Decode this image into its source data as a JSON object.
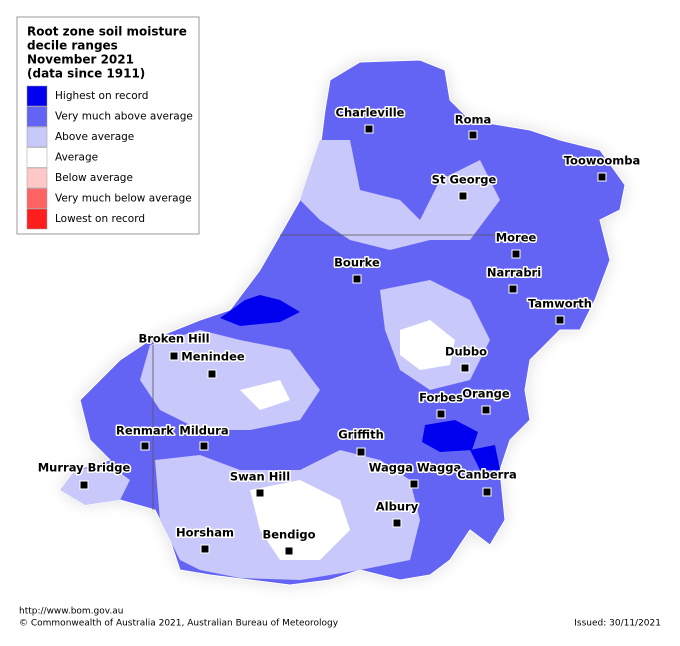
{
  "legend": {
    "title_lines": [
      "Root zone soil moisture",
      "decile ranges",
      "November 2021",
      "(data since 1911)"
    ],
    "items": [
      {
        "label": "Highest on record",
        "color": "#0000ee"
      },
      {
        "label": "Very much above average",
        "color": "#6464f4"
      },
      {
        "label": "Above average",
        "color": "#c8c8fa"
      },
      {
        "label": "Average",
        "color": "#ffffff"
      },
      {
        "label": "Below average",
        "color": "#ffc8c8"
      },
      {
        "label": "Very much below average",
        "color": "#ff6464"
      },
      {
        "label": "Lowest on record",
        "color": "#ff1e1e"
      }
    ]
  },
  "towns": [
    "Charleville",
    "Roma",
    "Toowoomba",
    "St George",
    "Moree",
    "Bourke",
    "Narrabri",
    "Tamworth",
    "Broken Hill",
    "Menindee",
    "Dubbo",
    "Orange",
    "Forbes",
    "Renmark",
    "Mildura",
    "Griffith",
    "Wagga Wagga",
    "Canberra",
    "Murray Bridge",
    "Swan Hill",
    "Albury",
    "Horsham",
    "Bendigo"
  ],
  "footer": {
    "url": "http://www.bom.gov.au",
    "copyright": "© Commonwealth of Australia 2021, Australian Bureau of Meteorology",
    "issued": "Issued: 30/11/2021"
  }
}
